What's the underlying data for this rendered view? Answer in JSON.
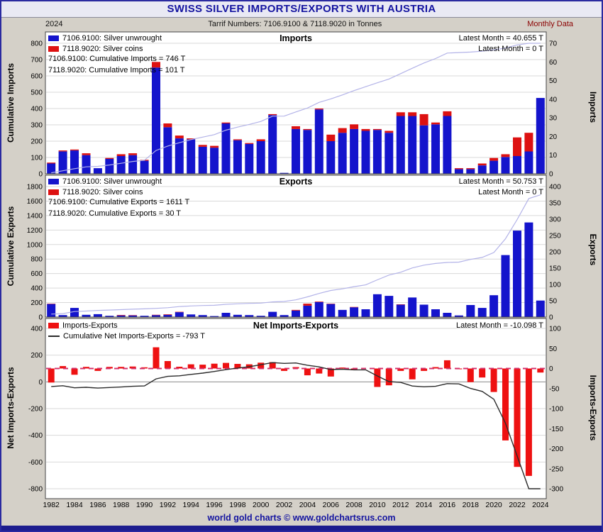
{
  "header": {
    "title": "SWISS SILVER IMPORTS/EXPORTS WITH AUSTRIA",
    "year_label": "2024",
    "subtitle": "Tarrif Numbers: 7106.9100 & 7118.9020 in Tonnes",
    "right_label": "Monthly Data"
  },
  "footer": {
    "text": "world gold charts © www.goldchartsrus.com"
  },
  "colors": {
    "bar_blue": "#1414cc",
    "bar_red": "#dd1111",
    "cumulative_line": "#b3b3e8",
    "net_line": "#2b2b2b",
    "net_dashed": "#d6336c",
    "title_navy": "#1414a0",
    "background": "#d4d0c8"
  },
  "chart_data": {
    "type": "bar",
    "x_tick_step": 2,
    "x_years": [
      1982,
      1983,
      1984,
      1985,
      1986,
      1987,
      1988,
      1989,
      1990,
      1991,
      1992,
      1993,
      1994,
      1995,
      1996,
      1997,
      1998,
      1999,
      2000,
      2001,
      2002,
      2003,
      2004,
      2005,
      2006,
      2007,
      2008,
      2009,
      2010,
      2011,
      2012,
      2013,
      2014,
      2015,
      2016,
      2017,
      2018,
      2019,
      2020,
      2021,
      2022,
      2023,
      2024
    ],
    "panels": [
      {
        "id": "imports",
        "title": "Imports",
        "left_axis": {
          "label": "Cumulative Imports",
          "min": 0,
          "max": 800,
          "step": 100
        },
        "right_axis": {
          "label": "Imports",
          "min": 0,
          "max": 70,
          "step": 10
        },
        "legend": [
          {
            "label": "7106.9100: Silver unwrought"
          },
          {
            "label": "7118.9020: Silver coins"
          }
        ],
        "cumulative_labels": [
          "7106.9100: Cumulative Imports = 746 T",
          "7118.9020: Cumulative Imports = 101 T"
        ],
        "latest_labels": [
          "Latest Month = 40.655 T",
          "Latest Month = 0 T"
        ],
        "series": [
          {
            "name": "Silver unwrought",
            "color": "#1414cc",
            "values": [
              5.5,
              12,
              12.5,
              10,
              3,
              8,
              9.5,
              10,
              7,
              57,
              25,
              19,
              18.5,
              14.5,
              14,
              27,
              18,
              16,
              17.5,
              31.5,
              0.5,
              24,
              23.5,
              34.5,
              17.5,
              22,
              24,
              23,
              23.5,
              22,
              31,
              31,
              26,
              26.5,
              31,
              2.5,
              2.5,
              4.5,
              7,
              9,
              9.5,
              12,
              40.655
            ]
          },
          {
            "name": "Silver coins",
            "color": "#dd1111",
            "values": [
              0.5,
              0.5,
              0.5,
              1,
              0,
              0.5,
              1,
              1,
              0.5,
              3,
              2,
              1.5,
              0.5,
              1,
              1,
              0.5,
              0.5,
              0.5,
              1,
              0.5,
              0,
              1.5,
              0.5,
              0.5,
              3.5,
              2.5,
              2.5,
              1,
              0.5,
              1,
              2,
              2,
              6,
              1,
              2.5,
              0.5,
              0.5,
              1,
              1.5,
              1.5,
              10,
              10,
              0
            ]
          }
        ],
        "cumulative_line": {
          "color": "#b3b3e8",
          "width": 1.2
        }
      },
      {
        "id": "exports",
        "title": "Exports",
        "left_axis": {
          "label": "Cumulative Exports",
          "min": 0,
          "max": 1800,
          "step": 200
        },
        "right_axis": {
          "label": "Exports",
          "min": 0,
          "max": 400,
          "step": 50
        },
        "legend": [
          {
            "label": "7106.9100: Silver unwrought"
          },
          {
            "label": "7118.9020: Silver coins"
          }
        ],
        "cumulative_labels": [
          "7106.9100: Cumulative Exports = 1611 T",
          "7118.9020: Cumulative Exports = 30 T"
        ],
        "latest_labels": [
          "Latest Month = 50.753 T",
          "Latest Month = 0 T"
        ],
        "series": [
          {
            "name": "Silver unwrought",
            "color": "#1414cc",
            "values": [
              40,
              6,
              28,
              7,
              9,
              4,
              5,
              5,
              4,
              6,
              7,
              15,
              8,
              6,
              3,
              13,
              7,
              6,
              4,
              16,
              6,
              20,
              35,
              46,
              40,
              22,
              30,
              24,
              70,
              65,
              38,
              60,
              38,
              24,
              13,
              5,
              37,
              28,
              67,
              190,
              265,
              290,
              50.753
            ]
          },
          {
            "name": "Silver coins",
            "color": "#dd1111",
            "values": [
              1,
              0.5,
              0.5,
              0,
              0,
              0.5,
              1.5,
              1,
              0.5,
              1,
              1.5,
              1,
              0.5,
              0,
              0,
              0.5,
              0,
              0,
              0,
              0,
              0.5,
              2,
              6,
              1.5,
              1,
              0,
              1,
              0,
              0,
              0,
              1,
              0,
              0,
              0,
              0,
              0,
              0,
              0,
              0,
              0,
              0,
              0,
              0
            ]
          }
        ],
        "cumulative_line": {
          "color": "#b3b3e8",
          "width": 1.2
        }
      },
      {
        "id": "net",
        "title": "Net Imports-Exports",
        "left_axis": {
          "label": "Net Imports-Exports",
          "min": -800,
          "max": 400,
          "step": 200
        },
        "right_axis": {
          "label": "Imports-Exports",
          "min": -300,
          "max": 100,
          "step": 50
        },
        "legend": [
          {
            "label": "Imports-Exports"
          },
          {
            "label": "Cumulative Net Imports-Exports = -793 T"
          }
        ],
        "cumulative_labels": [],
        "latest_labels": [
          "Latest Month = -10.098 T"
        ],
        "baseline_dash": "#d6336c",
        "series": [
          {
            "name": "Imports-Exports",
            "color": "#ee1111",
            "values": [
              -35,
              6,
              -15.5,
              4,
              -6,
              4,
              4,
              5,
              3,
              53,
              18.5,
              4.5,
              10.5,
              9.5,
              12,
              14,
              11.5,
              10.5,
              14.5,
              16,
              -6,
              3.5,
              -17,
              -12.5,
              -20,
              2.5,
              -4.5,
              0,
              -46,
              -42,
              -6,
              -27,
              -6,
              3.5,
              20.5,
              -2,
              -34,
              -22.5,
              -58.5,
              -179.5,
              -245.5,
              -268,
              -10.098
            ]
          }
        ],
        "cumulative_line": {
          "color": "#2b2b2b",
          "width": 1.4
        }
      }
    ]
  }
}
